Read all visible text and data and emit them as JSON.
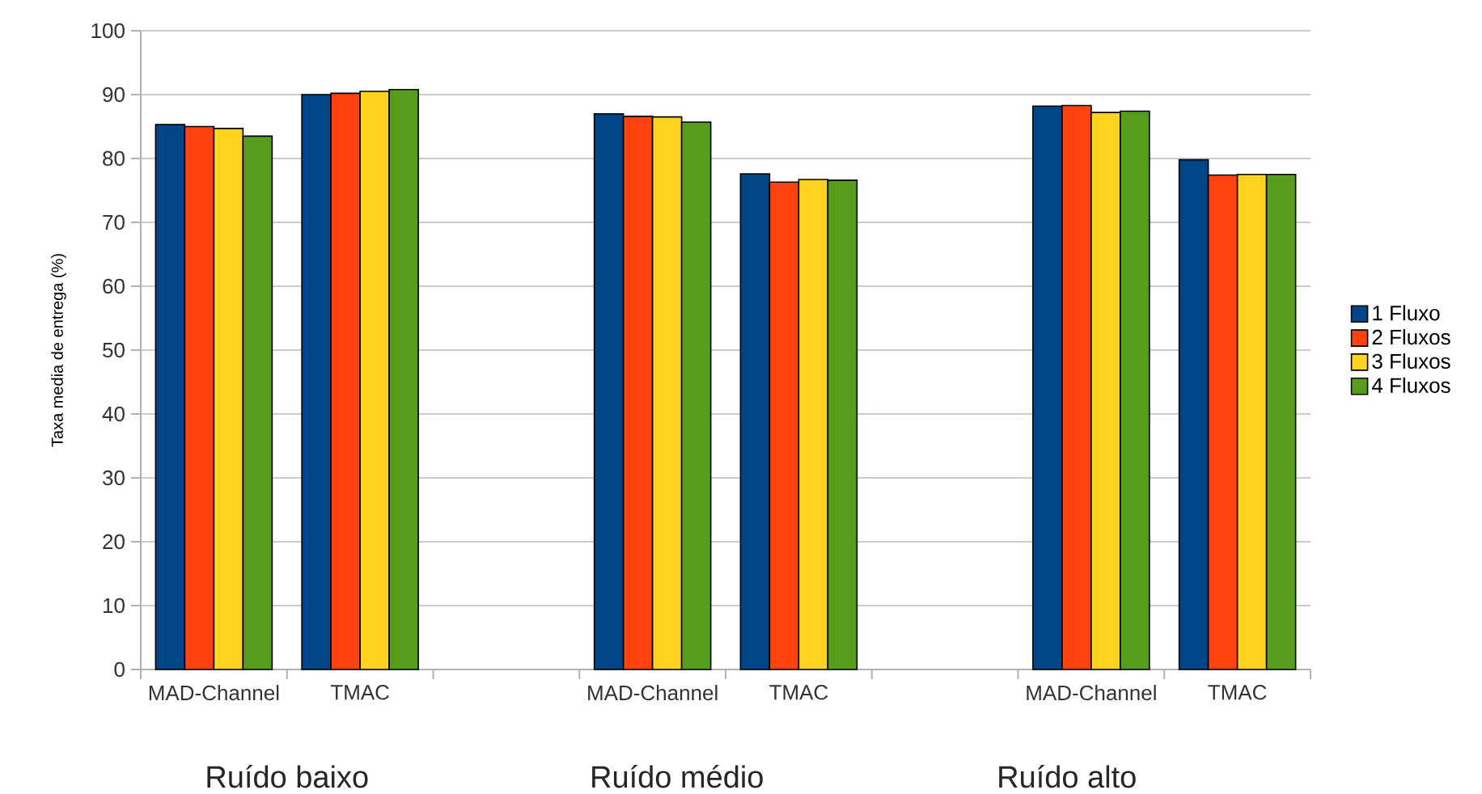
{
  "chart_data": {
    "type": "bar",
    "ylabel": "Taxa media de entrega (%)",
    "categories": [
      "MAD-Channel",
      "TMAC",
      null,
      "MAD-Channel",
      "TMAC",
      null,
      "MAD-Channel",
      "TMAC"
    ],
    "series": [
      {
        "name": "1 Fluxo",
        "color": "#004586",
        "values": [
          85.3,
          90.0,
          null,
          87.0,
          77.6,
          null,
          88.2,
          79.8
        ]
      },
      {
        "name": "2 Fluxos",
        "color": "#ff420e",
        "values": [
          85.0,
          90.2,
          null,
          86.6,
          76.3,
          null,
          88.3,
          77.4
        ]
      },
      {
        "name": "3 Fluxos",
        "color": "#ffd320",
        "values": [
          84.7,
          90.5,
          null,
          86.5,
          76.7,
          null,
          87.2,
          77.5
        ]
      },
      {
        "name": "4 Fluxos",
        "color": "#579d1c",
        "values": [
          83.5,
          90.8,
          null,
          85.7,
          76.6,
          null,
          87.4,
          77.5
        ]
      }
    ],
    "ylim": [
      0,
      100
    ],
    "yticks": [
      0,
      10,
      20,
      30,
      40,
      50,
      60,
      70,
      80,
      90,
      100
    ],
    "grid": "y",
    "legend": "right",
    "annotations": [
      "Ruído baixo",
      "Ruído médio",
      "Ruído alto"
    ]
  }
}
